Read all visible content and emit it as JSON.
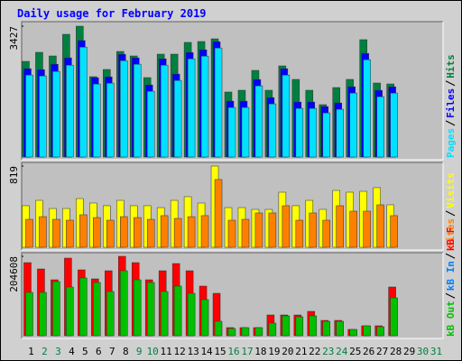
{
  "chart_data": [
    {
      "type": "bar",
      "title": "Daily usage for February 2019",
      "ylim": [
        0,
        3427
      ],
      "yticks": [
        3427
      ],
      "series": [
        {
          "name": "Hits",
          "color": "#008040",
          "values": [
            2505,
            2742,
            2647,
            3214,
            3427,
            2104,
            2293,
            2765,
            2647,
            2080,
            2694,
            2694,
            3002,
            3025,
            3096,
            1702,
            1749,
            2269,
            1749,
            2387,
            2033,
            1749,
            1371,
            1820,
            2033,
            3073,
            1938,
            1914,
            null,
            null,
            null
          ]
        },
        {
          "name": "Files",
          "color": "#0000ff",
          "values": [
            2313,
            2289,
            2430,
            2596,
            3050,
            2077,
            2100,
            2690,
            2596,
            1888,
            2572,
            2171,
            2737,
            2808,
            3021,
            1463,
            1463,
            2030,
            1557,
            2313,
            1440,
            1440,
            1322,
            1416,
            1840,
            2714,
            1746,
            1840,
            null,
            null,
            null
          ]
        },
        {
          "name": "Pages",
          "color": "#00e0ff",
          "values": [
            2148,
            2124,
            2242,
            2407,
            2879,
            1912,
            1935,
            2525,
            2431,
            1723,
            2407,
            2006,
            2572,
            2643,
            2856,
            1298,
            1298,
            1864,
            1392,
            2148,
            1274,
            1274,
            1156,
            1251,
            1676,
            2549,
            1581,
            1676,
            null,
            null,
            null
          ]
        }
      ]
    },
    {
      "type": "bar",
      "ylim": [
        0,
        819
      ],
      "yticks": [
        819
      ],
      "series": [
        {
          "name": "Visits",
          "color": "#ffff00",
          "values": [
            419,
            473,
            391,
            391,
            491,
            446,
            419,
            473,
            419,
            419,
            400,
            473,
            510,
            446,
            819,
            400,
            400,
            382,
            382,
            555,
            419,
            473,
            382,
            573,
            555,
            564,
            601,
            428,
            null,
            null,
            null
          ]
        },
        {
          "name": "Sites",
          "color": "#ff8000",
          "values": [
            282,
            309,
            282,
            273,
            328,
            300,
            273,
            309,
            300,
            282,
            319,
            291,
            309,
            319,
            683,
            273,
            282,
            346,
            346,
            419,
            273,
            346,
            273,
            419,
            364,
            364,
            428,
            319,
            null,
            null,
            null
          ]
        }
      ]
    },
    {
      "type": "bar",
      "ylim": [
        0,
        204608
      ],
      "yticks": [
        204608
      ],
      "categories": [
        "1",
        "2",
        "3",
        "4",
        "5",
        "6",
        "7",
        "8",
        "9",
        "10",
        "11",
        "12",
        "13",
        "14",
        "15",
        "16",
        "17",
        "18",
        "19",
        "20",
        "21",
        "22",
        "23",
        "24",
        "25",
        "26",
        "27",
        "28",
        "29",
        "30",
        "31"
      ],
      "category_colors": [
        "#000000",
        "#008040",
        "#008040",
        "#000000",
        "#000000",
        "#000000",
        "#000000",
        "#000000",
        "#008040",
        "#008040",
        "#000000",
        "#000000",
        "#000000",
        "#000000",
        "#000000",
        "#008040",
        "#008040",
        "#000000",
        "#000000",
        "#000000",
        "#000000",
        "#000000",
        "#008040",
        "#008040",
        "#000000",
        "#000000",
        "#000000",
        "#000000",
        "#000000",
        "#008040",
        "#008040"
      ],
      "series": [
        {
          "name": "kB F",
          "color": "#ff0000",
          "values": [
            188325,
            172050,
            144150,
            199950,
            169725,
            146475,
            167400,
            204608,
            188325,
            144150,
            167400,
            186000,
            167400,
            127875,
            109275,
            20925,
            20925,
            20925,
            53475,
            53475,
            53475,
            62775,
            39525,
            39525,
            16275,
            25575,
            25575,
            125550,
            null,
            null,
            null
          ]
        },
        {
          "name": "kB In",
          "color": "#0080ff",
          "values": [
            0,
            0,
            0,
            0,
            0,
            0,
            0,
            0,
            0,
            0,
            0,
            0,
            0,
            0,
            0,
            0,
            0,
            0,
            0,
            0,
            0,
            0,
            0,
            0,
            0,
            0,
            0,
            0,
            null,
            null,
            null
          ]
        },
        {
          "name": "kB Out",
          "color": "#00c000",
          "values": [
            111600,
            111600,
            139500,
            125550,
            148800,
            137175,
            113925,
            167400,
            144150,
            137175,
            113925,
            127875,
            109275,
            93000,
            37200,
            18600,
            20925,
            20925,
            32550,
            51150,
            48825,
            51150,
            37200,
            37200,
            16275,
            25575,
            23250,
            97650,
            null,
            null,
            null
          ]
        }
      ]
    }
  ]
}
